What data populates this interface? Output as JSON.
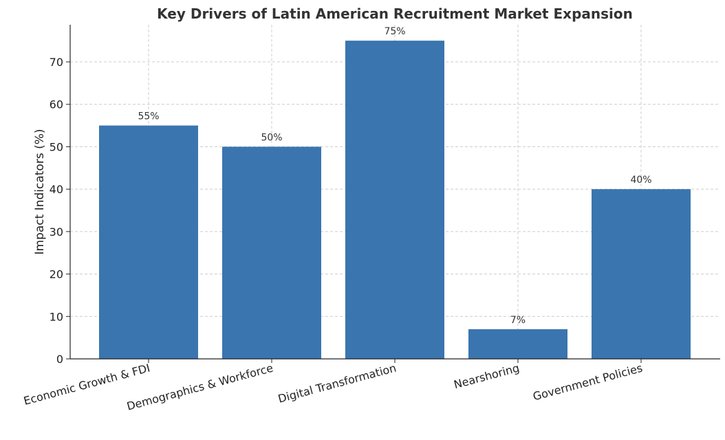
{
  "chart_data": {
    "type": "bar",
    "title": "Key Drivers of Latin American Recruitment Market Expansion",
    "xlabel": "",
    "ylabel": "Impact Indicators (%)",
    "categories": [
      "Economic Growth & FDI",
      "Demographics & Workforce",
      "Digital Transformation",
      "Nearshoring",
      "Government Policies"
    ],
    "values": [
      55,
      50,
      75,
      7,
      40
    ],
    "data_labels": [
      "55%",
      "50%",
      "75%",
      "7%",
      "40%"
    ],
    "ylim": [
      0,
      78.75
    ],
    "yticks": [
      0,
      10,
      20,
      30,
      40,
      50,
      60,
      70
    ],
    "bar_color": "#3a75af",
    "grid": true
  }
}
